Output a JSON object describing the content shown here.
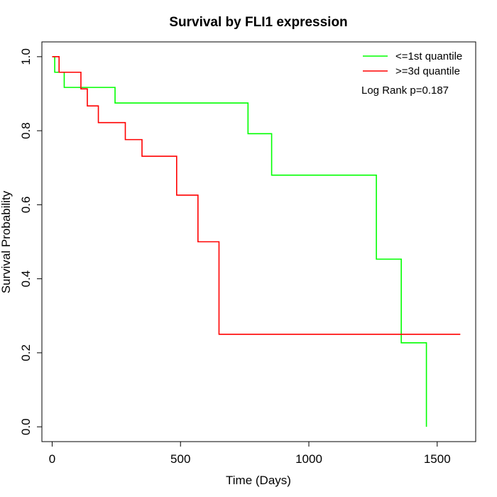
{
  "chart_data": {
    "type": "line",
    "title": "Survival by FLI1 expression",
    "xlabel": "Time (Days)",
    "ylabel": "Survival Probability",
    "xlim": [
      -40,
      1650
    ],
    "ylim": [
      -0.04,
      1.04
    ],
    "xticks": [
      0,
      500,
      1000,
      1500
    ],
    "xtick_labels": [
      "0",
      "500",
      "1000",
      "1500"
    ],
    "yticks": [
      0.0,
      0.2,
      0.4,
      0.6,
      0.8,
      1.0
    ],
    "ytick_labels": [
      "0.0",
      "0.2",
      "0.4",
      "0.6",
      "0.8",
      "1.0"
    ],
    "grid": false,
    "legend_position": "top-right",
    "annotation": "Log Rank p=0.187",
    "series": [
      {
        "name": "<=1st quantile",
        "color": "#00ff00",
        "step_points": [
          [
            0,
            1.0
          ],
          [
            10,
            0.958
          ],
          [
            47,
            0.917
          ],
          [
            245,
            0.875
          ],
          [
            763,
            0.792
          ],
          [
            855,
            0.68
          ],
          [
            1263,
            0.453
          ],
          [
            1360,
            0.227
          ],
          [
            1458,
            0.0
          ]
        ],
        "end_x": 1458
      },
      {
        "name": ">=3d quantile",
        "color": "#ff0000",
        "step_points": [
          [
            0,
            1.0
          ],
          [
            27,
            0.958
          ],
          [
            112,
            0.913
          ],
          [
            137,
            0.867
          ],
          [
            180,
            0.822
          ],
          [
            285,
            0.776
          ],
          [
            350,
            0.731
          ],
          [
            485,
            0.626
          ],
          [
            568,
            0.5
          ],
          [
            650,
            0.25
          ]
        ],
        "end_x": 1590
      }
    ]
  }
}
